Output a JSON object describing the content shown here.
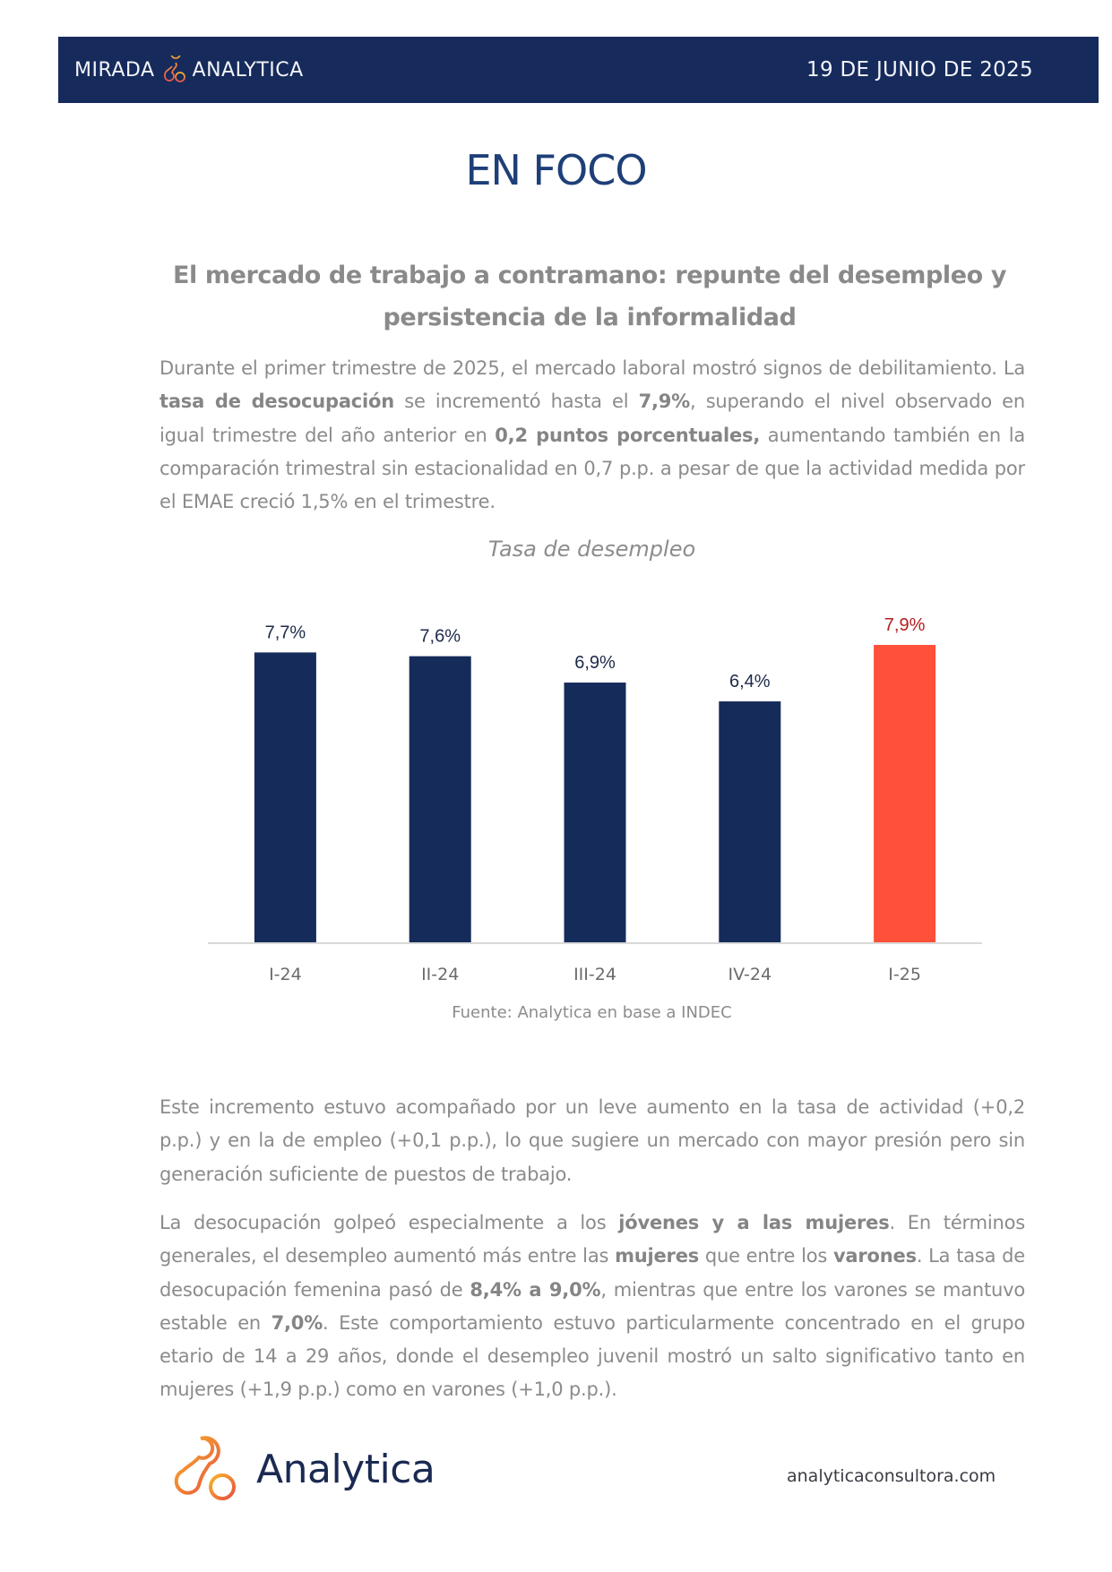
{
  "header": {
    "left_prefix": "MIRADA",
    "left_suffix": "ANALYTICA",
    "logo_icon": "analytica-linked-circles-icon",
    "date": "19 DE JUNIO DE 2025",
    "background_color": "#162b5c"
  },
  "section_title": "EN FOCO",
  "article": {
    "title": "El mercado de trabajo a contramano: repunte del desempleo y persistencia de la informalidad",
    "paragraph1": [
      {
        "t": "Durante el primer trimestre de 2025, el mercado laboral mostró signos de debilitamiento. La ",
        "b": false
      },
      {
        "t": "tasa de desocupación",
        "b": true
      },
      {
        "t": " se incrementó hasta el ",
        "b": false
      },
      {
        "t": "7,9%",
        "b": true
      },
      {
        "t": ", superando el nivel observado en igual trimestre del año anterior en ",
        "b": false
      },
      {
        "t": "0,2 puntos porcentuales,",
        "b": true
      },
      {
        "t": " aumentando también en la comparación trimestral sin estacionalidad en 0,7 p.p. a pesar de que la actividad medida por el EMAE creció 1,5% en el trimestre.",
        "b": false
      }
    ],
    "paragraph2": [
      {
        "t": "Este incremento estuvo acompañado por un leve aumento en la tasa de actividad (+0,2 p.p.) y en la de empleo (+0,1 p.p.), lo que sugiere un mercado con mayor presión pero sin generación suficiente de puestos de trabajo.",
        "b": false
      }
    ],
    "paragraph3": [
      {
        "t": "La desocupación golpeó especialmente a los ",
        "b": false
      },
      {
        "t": "jóvenes y a las mujeres",
        "b": true
      },
      {
        "t": ". En términos generales, el desempleo aumentó más entre las ",
        "b": false
      },
      {
        "t": "mujeres",
        "b": true
      },
      {
        "t": " que entre los ",
        "b": false
      },
      {
        "t": "varones",
        "b": true
      },
      {
        "t": ". La tasa de desocupación femenina pasó de ",
        "b": false
      },
      {
        "t": "8,4% a 9,0%",
        "b": true
      },
      {
        "t": ", mientras que entre los varones se mantuvo estable en ",
        "b": false
      },
      {
        "t": "7,0%",
        "b": true
      },
      {
        "t": ". Este comportamiento estuvo particularmente concentrado en el grupo etario de 14 a 29 años, donde el desempleo juvenil mostró un salto significativo tanto en mujeres (+1,9 p.p.) como en varones (+1,0 p.p.).",
        "b": false
      }
    ]
  },
  "chart_data": {
    "type": "bar",
    "title": "Tasa de desempleo",
    "categories": [
      "I-24",
      "II-24",
      "III-24",
      "IV-24",
      "I-25"
    ],
    "values": [
      7.7,
      7.6,
      6.9,
      6.4,
      7.9
    ],
    "value_labels": [
      "7,7%",
      "7,6%",
      "6,9%",
      "6,4%",
      "7,9%"
    ],
    "unit": "%",
    "xlabel": "",
    "ylabel": "",
    "ylim": [
      0,
      7.9
    ],
    "grid": false,
    "y_axis_visible": false,
    "bar_colors": [
      "#152b5a",
      "#152b5a",
      "#152b5a",
      "#152b5a",
      "#ff503a"
    ],
    "label_colors": [
      "#1d2a4a",
      "#1d2a4a",
      "#1d2a4a",
      "#1d2a4a",
      "#b31d1d"
    ],
    "highlighted": "I-25",
    "source": "Fuente: Analytica en base a INDEC"
  },
  "footer": {
    "brand": "Analytica",
    "logo_icon": "analytica-linked-circles-icon",
    "url": "analyticaconsultora.com"
  }
}
